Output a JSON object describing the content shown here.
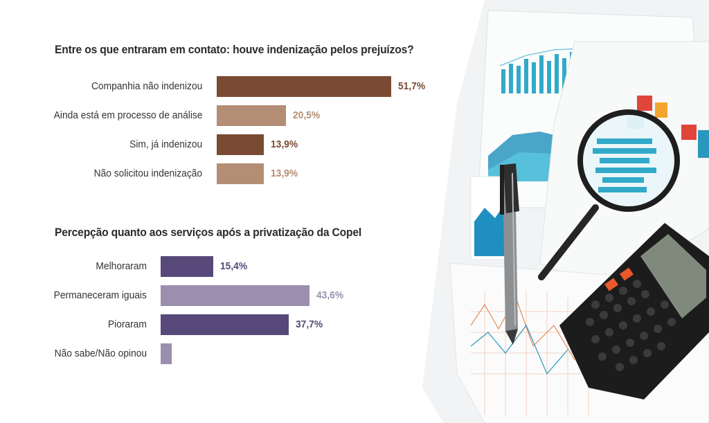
{
  "charts": [
    {
      "type": "bar",
      "orientation": "horizontal",
      "title": "Entre os que entraram em contato: houve indenização pelos prejuízos?",
      "categories": [
        "Companhia não indenizou",
        "Ainda está em processo de análise",
        "Sim, já indenizou",
        "Não solicitou indenização"
      ],
      "values": [
        51.7,
        20.5,
        13.9,
        13.9
      ],
      "value_labels": [
        "51,7%",
        "20,5%",
        "13,9%",
        "13,9%"
      ],
      "colors": [
        "#7a4a33",
        "#b38d74",
        "#7a4a33",
        "#b38d74"
      ],
      "unit": "%",
      "grid": false
    },
    {
      "type": "bar",
      "orientation": "horizontal",
      "title": "Percepção quanto aos serviços após a privatização da Copel",
      "categories": [
        "Melhoraram",
        "Permaneceram iguais",
        "Pioraram",
        "Não sabe/Não opinou"
      ],
      "values": [
        15.4,
        43.6,
        37.7,
        3.3
      ],
      "value_labels": [
        "15,4%",
        "43,6%",
        "37,7%",
        ""
      ],
      "colors": [
        "#56497a",
        "#9b8fb0",
        "#56497a",
        "#9b8fb0"
      ],
      "unit": "%",
      "grid": false
    }
  ]
}
